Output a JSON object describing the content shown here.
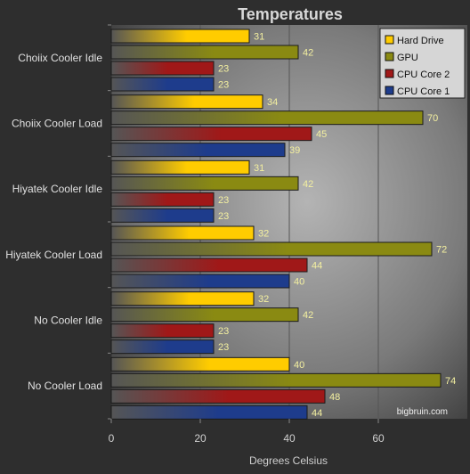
{
  "chart_data": {
    "type": "bar",
    "orientation": "horizontal",
    "title": "Temperatures",
    "xlabel": "Degrees Celsius",
    "xlim": [
      0,
      80
    ],
    "xticks": [
      0,
      20,
      40,
      60
    ],
    "grid": true,
    "legend_position": "top-right",
    "watermark": "bigbruin.com",
    "categories": [
      "Choiix Cooler Idle",
      "Choiix Cooler Load",
      "Hiyatek Cooler Idle",
      "Hiyatek Cooler Load",
      "No Cooler Idle",
      "No Cooler Load"
    ],
    "series": [
      {
        "name": "Hard Drive",
        "color": "#ffcc00",
        "values": [
          31,
          34,
          31,
          32,
          32,
          40
        ]
      },
      {
        "name": "GPU",
        "color": "#8a8a12",
        "values": [
          42,
          70,
          42,
          72,
          42,
          74
        ]
      },
      {
        "name": "CPU Core 2",
        "color": "#a01818",
        "values": [
          23,
          45,
          23,
          44,
          23,
          48
        ]
      },
      {
        "name": "CPU Core 1",
        "color": "#1e3c8c",
        "values": [
          23,
          39,
          23,
          40,
          23,
          44
        ]
      }
    ]
  }
}
